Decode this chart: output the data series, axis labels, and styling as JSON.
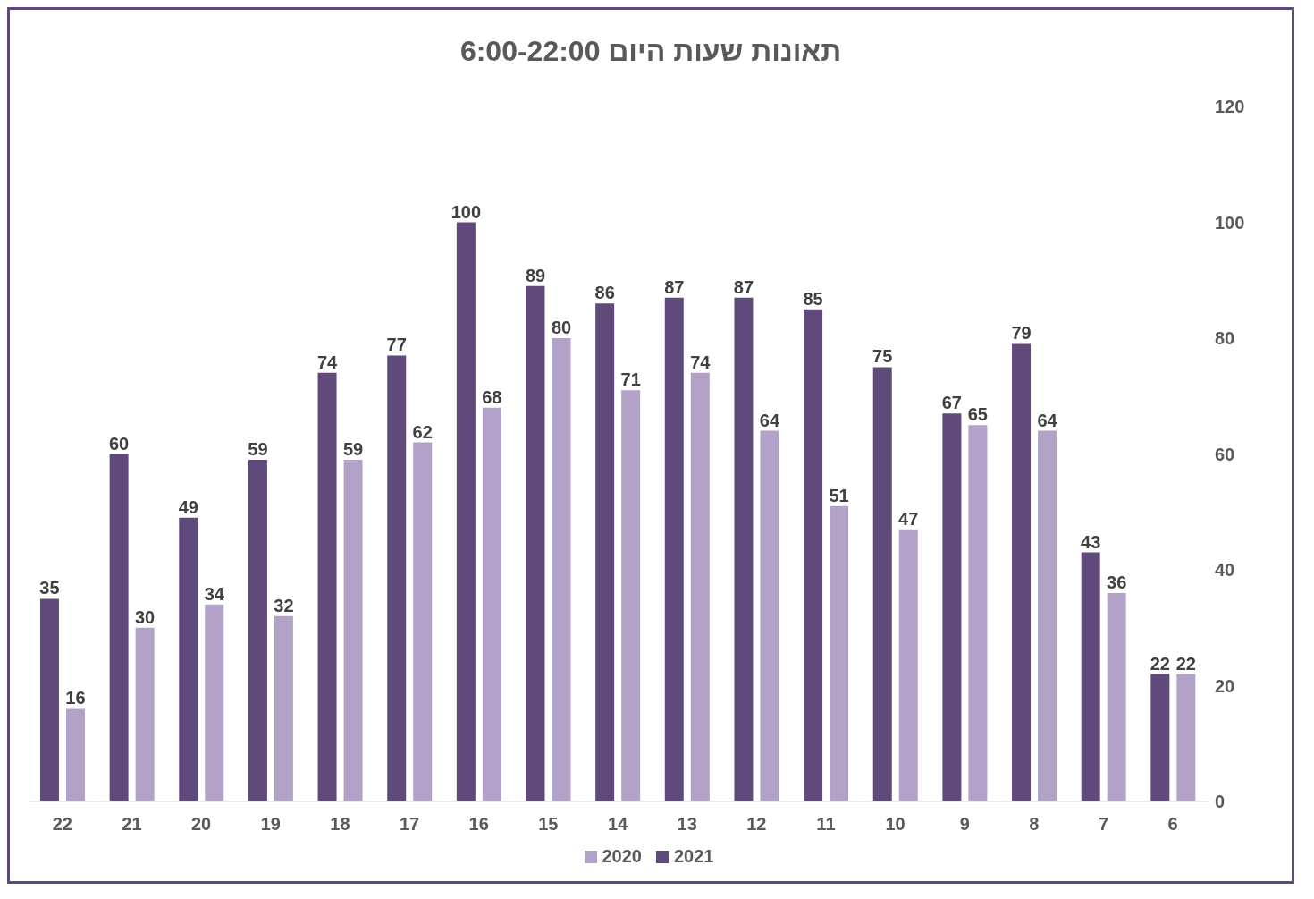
{
  "chart_data": {
    "type": "bar",
    "title": "תאונות שעות היום 6:00-22:00",
    "categories": [
      "22",
      "21",
      "20",
      "19",
      "18",
      "17",
      "16",
      "15",
      "14",
      "13",
      "12",
      "11",
      "10",
      "9",
      "8",
      "7",
      "6"
    ],
    "series": [
      {
        "name": "2021",
        "color": "#604a7b",
        "values": [
          35,
          60,
          49,
          59,
          74,
          77,
          100,
          89,
          86,
          87,
          87,
          85,
          75,
          67,
          79,
          43,
          22
        ]
      },
      {
        "name": "2020",
        "color": "#b3a2c7",
        "values": [
          16,
          30,
          34,
          32,
          59,
          62,
          68,
          80,
          71,
          74,
          64,
          51,
          47,
          65,
          64,
          36,
          22
        ]
      }
    ],
    "ylim": [
      0,
      120
    ],
    "yticks": [
      0,
      20,
      40,
      60,
      80,
      100,
      120
    ],
    "grid": false,
    "legend": "bottom",
    "data_labels": true
  }
}
